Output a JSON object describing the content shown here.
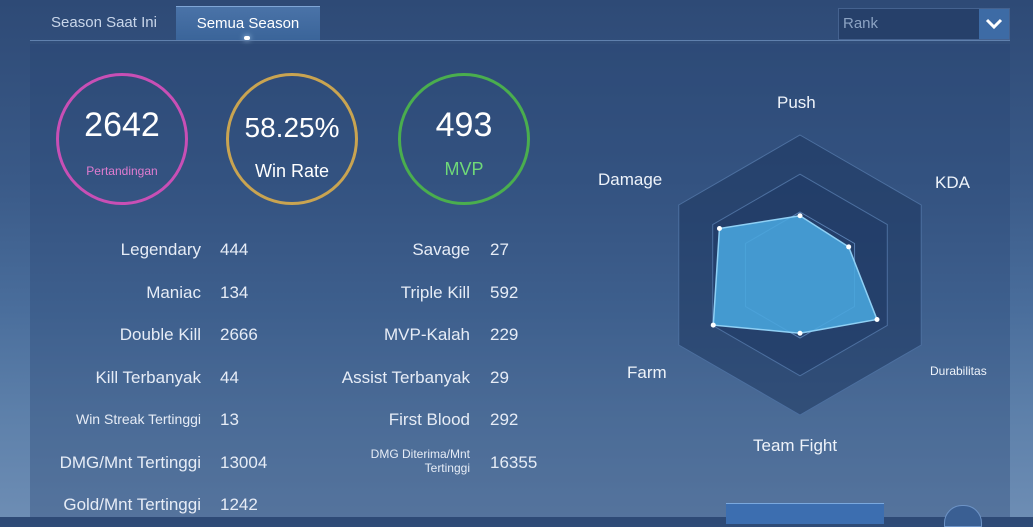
{
  "tabs": [
    {
      "label": "Season Saat Ini",
      "active": false
    },
    {
      "label": "Semua Season",
      "active": true
    }
  ],
  "filter": {
    "selected": "Rank"
  },
  "summary": {
    "matches": {
      "value": "2642",
      "label": "Pertandingan"
    },
    "win_rate": {
      "value": "58.25%",
      "label": "Win Rate"
    },
    "mvp": {
      "value": "493",
      "label": "MVP"
    }
  },
  "stats_left": [
    {
      "label": "Legendary",
      "value": "444"
    },
    {
      "label": "Maniac",
      "value": "134"
    },
    {
      "label": "Double Kill",
      "value": "2666"
    },
    {
      "label": "Kill Terbanyak",
      "value": "44"
    },
    {
      "label": "Win Streak Tertinggi",
      "value": "13"
    },
    {
      "label": "DMG/Mnt Tertinggi",
      "value": "13004"
    },
    {
      "label": "Gold/Mnt Tertinggi",
      "value": "1242"
    }
  ],
  "stats_right": [
    {
      "label": "Savage",
      "value": "27"
    },
    {
      "label": "Triple Kill",
      "value": "592"
    },
    {
      "label": "MVP-Kalah",
      "value": "229"
    },
    {
      "label": "Assist Terbanyak",
      "value": "29"
    },
    {
      "label": "First Blood",
      "value": "292"
    },
    {
      "label": "DMG Diterima/Mnt Tertinggi",
      "value": "16355"
    }
  ],
  "radar": {
    "axes": [
      "Push",
      "KDA",
      "Durabilitas",
      "Team Fight",
      "Farm",
      "Damage"
    ],
    "values": [
      0.58,
      0.55,
      0.87,
      0.57,
      0.98,
      0.91
    ]
  },
  "colors": {
    "matches_ring": "#c84fb5",
    "win_rate_ring": "#c9a451",
    "mvp_ring": "#4aae4e",
    "radar_fill": "#49a6de"
  }
}
